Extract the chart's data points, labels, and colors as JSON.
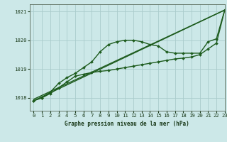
{
  "title": "Graphe pression niveau de la mer (hPa)",
  "background_color": "#cce8e8",
  "grid_color": "#aacccc",
  "line_color": "#1e5c1e",
  "xlim": [
    -0.5,
    23
  ],
  "ylim": [
    1017.55,
    1021.25
  ],
  "yticks": [
    1018,
    1019,
    1020,
    1021
  ],
  "xticks": [
    0,
    1,
    2,
    3,
    4,
    5,
    6,
    7,
    8,
    9,
    10,
    11,
    12,
    13,
    14,
    15,
    16,
    17,
    18,
    19,
    20,
    21,
    22,
    23
  ],
  "series": [
    {
      "x": [
        0,
        1,
        2,
        3,
        4,
        5,
        6,
        7,
        8,
        9,
        10,
        11,
        12,
        13,
        14,
        15,
        16,
        17,
        18,
        19,
        20,
        21,
        22,
        23
      ],
      "y": [
        1017.9,
        1018.0,
        1018.2,
        1018.5,
        1018.7,
        1018.85,
        1019.05,
        1019.25,
        1019.6,
        1019.85,
        1019.95,
        1020.0,
        1020.0,
        1019.95,
        1019.85,
        1019.8,
        1019.6,
        1019.55,
        1019.55,
        1019.55,
        1019.55,
        1019.95,
        1020.05,
        1021.05
      ],
      "marker": "D",
      "markersize": 2.0,
      "linewidth": 1.0
    },
    {
      "x": [
        0,
        23
      ],
      "y": [
        1017.9,
        1021.05
      ],
      "marker": null,
      "markersize": 0,
      "linewidth": 1.0
    },
    {
      "x": [
        0,
        23
      ],
      "y": [
        1017.95,
        1021.05
      ],
      "marker": null,
      "markersize": 0,
      "linewidth": 1.0
    },
    {
      "x": [
        0,
        1,
        2,
        3,
        4,
        5,
        6,
        7,
        8,
        9,
        10,
        11,
        12,
        13,
        14,
        15,
        16,
        17,
        18,
        19,
        20,
        21,
        22,
        23
      ],
      "y": [
        1017.9,
        1018.0,
        1018.15,
        1018.35,
        1018.55,
        1018.75,
        1018.82,
        1018.88,
        1018.92,
        1018.95,
        1019.0,
        1019.05,
        1019.1,
        1019.15,
        1019.2,
        1019.25,
        1019.3,
        1019.35,
        1019.38,
        1019.42,
        1019.5,
        1019.7,
        1019.9,
        1021.05
      ],
      "marker": "D",
      "markersize": 2.0,
      "linewidth": 1.0
    }
  ]
}
